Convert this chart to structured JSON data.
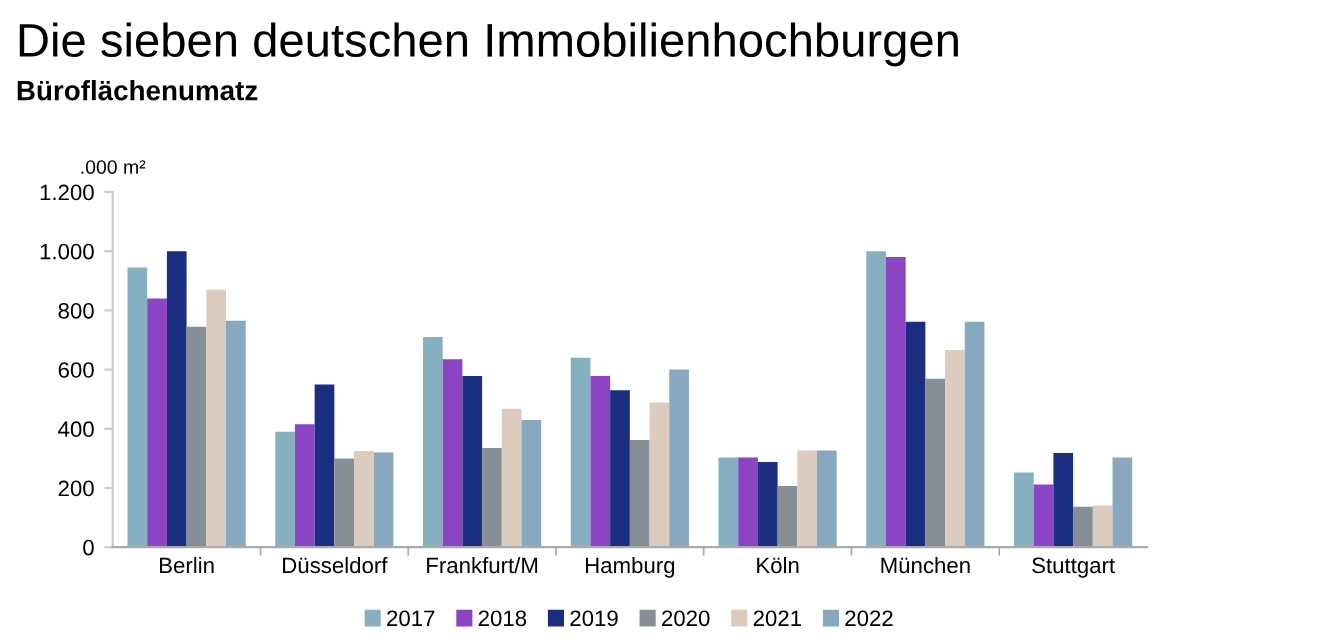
{
  "chart_data": {
    "type": "bar",
    "title": "Die sieben deutschen Immobilienhochburgen",
    "subtitle": "Büroflächenumatz",
    "ylabel": ".000 m²",
    "categories": [
      "Berlin",
      "Düsseldorf",
      "Frankfurt/M",
      "Hamburg",
      "Köln",
      "München",
      "Stuttgart"
    ],
    "series": [
      {
        "name": "2017",
        "color": "#86afc0",
        "values": [
          945,
          390,
          710,
          640,
          303,
          1000,
          252
        ]
      },
      {
        "name": "2018",
        "color": "#8a44c4",
        "values": [
          840,
          415,
          635,
          578,
          303,
          980,
          212
        ]
      },
      {
        "name": "2019",
        "color": "#1b2e80",
        "values": [
          1000,
          550,
          578,
          530,
          288,
          762,
          318
        ]
      },
      {
        "name": "2020",
        "color": "#868f96",
        "values": [
          745,
          300,
          335,
          362,
          207,
          569,
          137
        ]
      },
      {
        "name": "2021",
        "color": "#dccbbf",
        "values": [
          870,
          325,
          468,
          489,
          327,
          666,
          141
        ]
      },
      {
        "name": "2022",
        "color": "#88a8c0",
        "values": [
          765,
          320,
          430,
          600,
          327,
          762,
          303
        ]
      }
    ],
    "ylim": [
      0,
      1200
    ],
    "yticks": [
      0,
      200,
      400,
      600,
      800,
      {
        "value": 1000,
        "label": "1.000"
      },
      {
        "value": 1200,
        "label": "1.200"
      }
    ],
    "grid": false,
    "legend": "bottom"
  }
}
